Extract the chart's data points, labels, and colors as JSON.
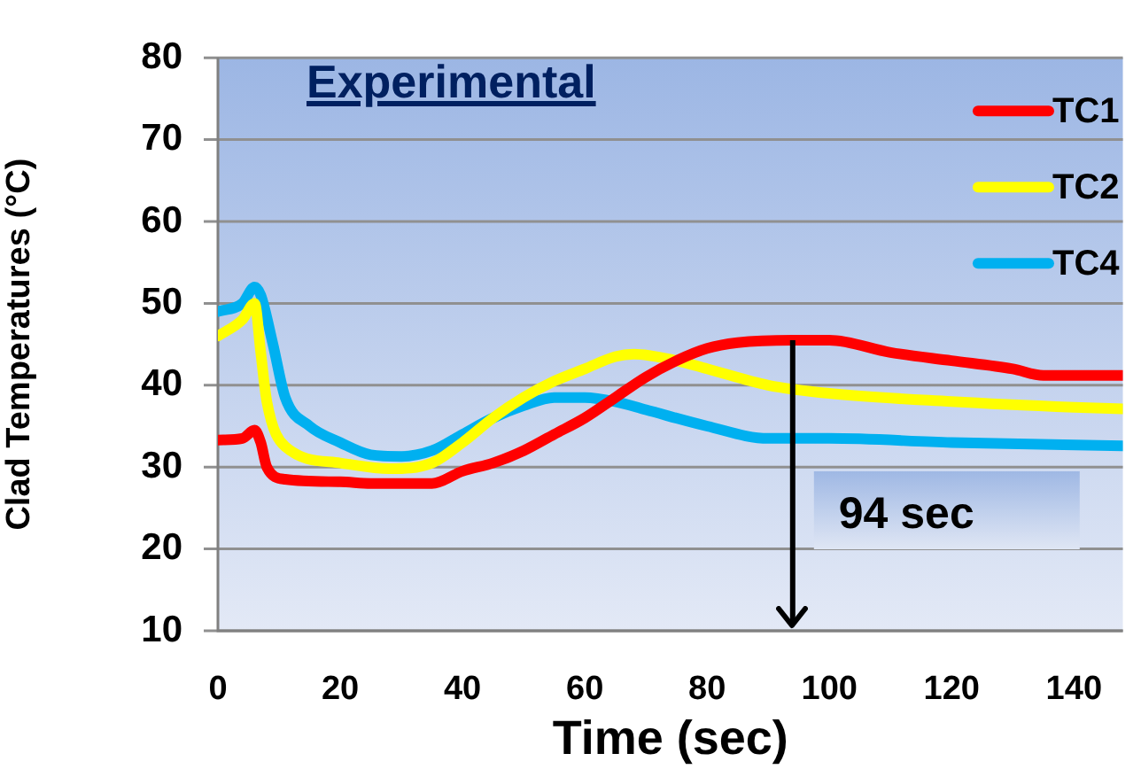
{
  "chart_data": {
    "type": "line",
    "title": "Experimental",
    "xlabel": "Time (sec)",
    "ylabel": "Clad Temperatures (°C)",
    "xlim": [
      0,
      148
    ],
    "xticks": [
      0,
      20,
      40,
      60,
      80,
      100,
      120,
      140
    ],
    "ylim": [
      10,
      80
    ],
    "yticks": [
      10,
      20,
      30,
      40,
      50,
      60,
      70,
      80
    ],
    "grid": "y",
    "legend": "top right",
    "marker": "none",
    "line_style": "solid",
    "ref_lines": [
      {
        "axis": "x",
        "value": 94,
        "label": "94 sec",
        "color": "#000000"
      }
    ],
    "series": [
      {
        "name": "TC1",
        "color": "#ff0000",
        "x": [
          0,
          4,
          6,
          7,
          8,
          11,
          20,
          25,
          35,
          40,
          45,
          50,
          55,
          60,
          65,
          70,
          75,
          80,
          85,
          94,
          100,
          110,
          120,
          130,
          135,
          148
        ],
        "values": [
          33.3,
          33.5,
          34.5,
          33,
          30,
          28.5,
          28.2,
          28,
          28,
          29.5,
          30.5,
          32,
          34,
          36,
          38.5,
          41,
          43,
          44.5,
          45.2,
          45.5,
          45.5,
          44,
          43,
          42,
          41.2,
          41.2
        ]
      },
      {
        "name": "TC2",
        "color": "#ffff00",
        "x": [
          0,
          4,
          6,
          7,
          8,
          11,
          20,
          28,
          35,
          40,
          45,
          50,
          55,
          60,
          65,
          68,
          75,
          80,
          90,
          100,
          120,
          140,
          148
        ],
        "values": [
          46,
          48,
          50,
          44,
          38,
          32.5,
          30.5,
          29.8,
          30.5,
          33,
          36,
          38.5,
          40.5,
          42,
          43.5,
          43.8,
          43,
          42,
          40,
          39,
          38,
          37.3,
          37.1
        ]
      },
      {
        "name": "TC4",
        "color": "#00b0f0",
        "x": [
          0,
          4,
          6,
          7,
          9,
          11,
          15,
          20,
          25,
          30,
          35,
          40,
          45,
          50,
          55,
          60,
          65,
          70,
          80,
          90,
          100,
          120,
          148
        ],
        "values": [
          49,
          50,
          52,
          51,
          45,
          38.5,
          35,
          33,
          31.5,
          31.3,
          32,
          34,
          36,
          37.5,
          38.5,
          38.5,
          38,
          37,
          35,
          33.5,
          33.5,
          33,
          32.6
        ]
      }
    ]
  }
}
